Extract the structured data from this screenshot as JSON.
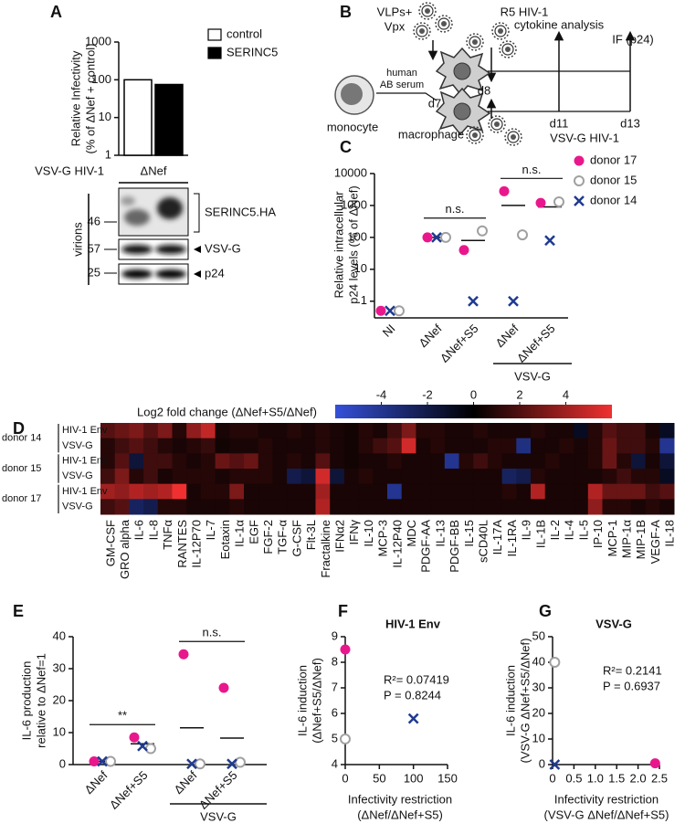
{
  "chart_data": [
    {
      "type": "bar",
      "label": "A",
      "y_label": [
        "Relative Infectivity",
        "(% of ΔNef + control)"
      ],
      "row_label": "VSV-G HIV-1",
      "categories": [
        "ΔNef"
      ],
      "series": [
        {
          "name": "control",
          "color": "#ffffff",
          "values": [
            100
          ]
        },
        {
          "name": "SERINC5",
          "color": "#000000",
          "values": [
            75
          ]
        }
      ],
      "log_y": true,
      "ylim": [
        1,
        1000
      ],
      "yticks": [
        1,
        10,
        100,
        1000
      ]
    },
    {
      "type": "dot",
      "label": "C",
      "y_label": [
        "Relative intracellular",
        "p24 levels (% of ΔNef)"
      ],
      "categories": [
        "NI",
        "ΔNef",
        "ΔNef+S5",
        "ΔNef",
        "ΔNef+S5"
      ],
      "group_label": "VSV-G",
      "brackets": [
        "n.s.",
        "n.s."
      ],
      "means": [
        null,
        100,
        80,
        1000,
        900
      ],
      "series": [
        {
          "name": "donor 17",
          "color": "#e8188c",
          "marker": "dot",
          "values": [
            0.5,
            100,
            40,
            2800,
            1200
          ]
        },
        {
          "name": "donor 15",
          "color": "#a0a0a0",
          "marker": "circle",
          "values": [
            0.5,
            100,
            160,
            120,
            1300
          ]
        },
        {
          "name": "donor 14",
          "color": "#1f3a8f",
          "marker": "cross",
          "values": [
            0.5,
            100,
            1,
            1,
            80
          ]
        }
      ],
      "log_y": true,
      "ylim": [
        0.3,
        10000
      ],
      "yticks": [
        1,
        10,
        100,
        1000,
        10000
      ],
      "legend": "right"
    },
    {
      "type": "heatmap",
      "label": "D",
      "title": "Log2 fold change (ΔNef+S5/ΔNef)",
      "columns": [
        "GM-CSF",
        "GRO alpha",
        "IL-6",
        "IL-8",
        "TNFα",
        "RANTES",
        "IL-12P70",
        "IL-7",
        "Eotaxin",
        "IL-1α",
        "EGF",
        "FGF-2",
        "TGF-α",
        "G-CSF",
        "Flt-3L",
        "Fractalkine",
        "IFNα2",
        "IFNγ",
        "IL-10",
        "MCP-3",
        "IL-12P40",
        "MDC",
        "PDGF-AA",
        "IL-13",
        "PDGF-BB",
        "IL-15",
        "sCD40L",
        "IL-17A",
        "IL-1RA",
        "IL-9",
        "IL-1B",
        "IL-2",
        "IL-4",
        "IL-5",
        "IP-10",
        "MCP-1",
        "MIP-1α",
        "MIP-1B",
        "VEGF-A",
        "IL-18"
      ],
      "row_groups": [
        {
          "name": "donor 14",
          "rows": [
            "HIV-1 Env",
            "VSV-G"
          ]
        },
        {
          "name": "donor 15",
          "rows": [
            "HIV-1 Env",
            "VSV-G"
          ]
        },
        {
          "name": "donor 17",
          "rows": [
            "HIV-1 Env",
            "VSV-G"
          ]
        }
      ],
      "values": [
        [
          1.5,
          2,
          2.5,
          1.5,
          2.5,
          0.5,
          3,
          4.5,
          0.3,
          0.5,
          0.5,
          0.3,
          0.3,
          0.5,
          0.3,
          0.5,
          0.3,
          0.2,
          0.5,
          0.3,
          1,
          2.5,
          0.5,
          0.5,
          0.3,
          0.3,
          0.5,
          0.3,
          0.3,
          0.3,
          0.5,
          0.3,
          0.3,
          -0.5,
          0.5,
          1.5,
          1,
          1,
          0.3,
          -0.5
        ],
        [
          0.5,
          1,
          1.5,
          1,
          0.5,
          0.3,
          0.5,
          0.8,
          0.2,
          0.3,
          0.3,
          0.5,
          0.3,
          0.3,
          0.3,
          0.5,
          0.3,
          0.2,
          0.5,
          1,
          1.5,
          5,
          0.3,
          0.5,
          0.3,
          0.3,
          0.3,
          0.5,
          0.5,
          -3,
          0.3,
          0.3,
          0.5,
          0.3,
          0.5,
          2,
          1,
          1,
          0.5,
          -3.5
        ],
        [
          0.5,
          1.5,
          -1,
          1,
          1,
          0.5,
          0.3,
          0.5,
          2,
          1.5,
          2,
          0.5,
          0.3,
          0.5,
          0.3,
          1.5,
          0.3,
          0.2,
          0.3,
          0.3,
          0.5,
          0.3,
          0.3,
          0.3,
          -3.5,
          0.5,
          1,
          0.5,
          0.3,
          0.3,
          0.3,
          0.5,
          0.3,
          0.3,
          0.5,
          2,
          0.5,
          -1,
          0.3,
          -1
        ],
        [
          1,
          2.5,
          0.5,
          1,
          0.3,
          0.5,
          0.5,
          0.5,
          0.3,
          0.5,
          0.5,
          0.5,
          0.3,
          -1.5,
          -1,
          5,
          -1,
          0.3,
          0.5,
          0.3,
          0.3,
          0.3,
          0.3,
          0.3,
          0.3,
          0.3,
          0.3,
          0.3,
          -2,
          -1.5,
          0.5,
          0.3,
          0.3,
          0.3,
          0.3,
          0.5,
          1,
          0.5,
          0.5,
          -0.5
        ],
        [
          3.5,
          3,
          4,
          3.5,
          4,
          6,
          0.3,
          0.5,
          0.5,
          2.5,
          0.3,
          0.3,
          0.3,
          0.3,
          0.3,
          3.5,
          0.3,
          0.3,
          0.3,
          0.3,
          -3.5,
          0.3,
          0.3,
          0.3,
          0.3,
          0.3,
          0.3,
          0.3,
          0.5,
          0.3,
          4,
          0.3,
          0.3,
          0.3,
          4,
          2,
          2,
          2,
          1,
          1.5
        ],
        [
          1,
          1.5,
          -2,
          -1.5,
          0.5,
          0.5,
          0.3,
          0.3,
          0.3,
          0.5,
          0.3,
          0.3,
          0.3,
          0.3,
          0.3,
          4,
          0.3,
          0.3,
          0.3,
          0.3,
          0.3,
          0.3,
          0.3,
          0.3,
          0.3,
          0.3,
          0.3,
          0.3,
          0.3,
          0.3,
          0.3,
          0.3,
          0.3,
          0.3,
          3,
          0.5,
          0.5,
          0.3,
          0.5,
          0.3
        ]
      ],
      "zlim": [
        -6,
        6
      ],
      "colorbar_ticks": [
        -4,
        -2,
        0,
        2,
        4
      ],
      "colors": [
        "#3550d8",
        "#000000",
        "#f03030"
      ]
    },
    {
      "type": "dot",
      "label": "E",
      "y_label": [
        "IL-6 production",
        "relative to ΔNef=1"
      ],
      "categories": [
        "ΔNef",
        "ΔNef+S5",
        "ΔNef",
        "ΔNef+S5"
      ],
      "group_label": "VSV-G",
      "brackets": [
        "**",
        "n.s."
      ],
      "means": [
        1,
        6.5,
        11.5,
        8.3
      ],
      "series": [
        {
          "color": "#e8188c",
          "marker": "dot",
          "values": [
            1,
            8.5,
            34.5,
            24
          ]
        },
        {
          "color": "#a0a0a0",
          "marker": "circle",
          "values": [
            1,
            5,
            0.2,
            0.7
          ]
        },
        {
          "color": "#1f3a8f",
          "marker": "cross",
          "values": [
            1,
            5.8,
            0.2,
            0.2
          ]
        }
      ],
      "ylim": [
        0,
        40
      ],
      "yticks": [
        0,
        10,
        20,
        30,
        40
      ]
    },
    {
      "type": "scatter",
      "label": "F",
      "title": "HIV-1 Env",
      "x_label": [
        "Infectivity restriction",
        "(ΔNef/ΔNef+S5)"
      ],
      "y_label": [
        "IL-6 induction",
        "(ΔNef+S5/ΔNef)"
      ],
      "series": [
        {
          "color": "#e8188c",
          "marker": "dot",
          "x": [
            0
          ],
          "values": [
            8.5
          ]
        },
        {
          "color": "#a0a0a0",
          "marker": "circle",
          "x": [
            0
          ],
          "values": [
            5
          ]
        },
        {
          "color": "#1f3a8f",
          "marker": "cross",
          "x": [
            100
          ],
          "values": [
            5.8
          ]
        }
      ],
      "xlim": [
        0,
        150
      ],
      "xticks": [
        0,
        50,
        100,
        150
      ],
      "ylim": [
        4,
        9
      ],
      "yticks": [
        4,
        5,
        6,
        7,
        8,
        9
      ],
      "annotations": [
        "R²= 0.07419",
        "P = 0.8244"
      ]
    },
    {
      "type": "scatter",
      "label": "G",
      "title": "VSV-G",
      "x_label": [
        "Infectivity restriction",
        "(VSV-G ΔNef/ΔNef+S5)"
      ],
      "y_label": [
        "IL-6 induction",
        "(VSV-G ΔNef+S5/ΔNef)"
      ],
      "series": [
        {
          "color": "#e8188c",
          "marker": "dot",
          "x": [
            2.4
          ],
          "values": [
            0.5
          ]
        },
        {
          "color": "#a0a0a0",
          "marker": "circle",
          "x": [
            0.05
          ],
          "values": [
            40
          ]
        },
        {
          "color": "#1f3a8f",
          "marker": "cross",
          "x": [
            0.05
          ],
          "values": [
            0
          ]
        }
      ],
      "xlim": [
        0,
        2.5
      ],
      "xticks": [
        0,
        0.5,
        {
          "value": 1,
          "label": "1.0"
        },
        1.5,
        {
          "value": 2,
          "label": "2.0"
        },
        2.5
      ],
      "ylim": [
        0,
        50
      ],
      "yticks": [
        0,
        10,
        20,
        30,
        40,
        50
      ],
      "annotations": [
        "R²= 0.2141",
        "P = 0.6937"
      ]
    }
  ],
  "blot": {
    "markers": [
      "46",
      "57",
      "25"
    ],
    "bands": [
      "SERINC5.HA",
      "VSV-G",
      "p24"
    ],
    "side_label": "virions"
  },
  "diagram": {
    "label": "B",
    "vlps": "VLPs+",
    "vpx": "Vpx",
    "r5": "R5 HIV-1",
    "cytokine": "cytokine analysis",
    "if": "IF (p24)",
    "serum": [
      "human",
      "AB serum"
    ],
    "monocyte": "monocyte",
    "macrophage": "macrophage",
    "days": [
      "d7",
      "d8",
      "d11",
      "d13"
    ],
    "vsvg": "VSV-G HIV-1"
  }
}
